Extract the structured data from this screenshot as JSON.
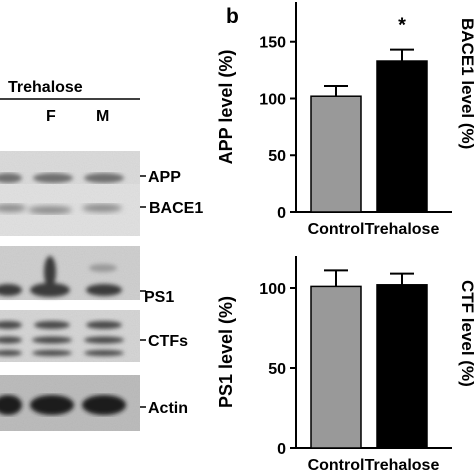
{
  "blot": {
    "group_label": "Trehalose",
    "lanes": [
      "F",
      "M"
    ],
    "bands": [
      "APP",
      "BACE1",
      "PS1",
      "CTFs",
      "Actin"
    ]
  },
  "panel_label": "b",
  "chart_data": [
    {
      "type": "bar",
      "categories": [
        "Control",
        "Trehalose"
      ],
      "values": [
        102,
        133
      ],
      "errors": [
        9,
        10
      ],
      "colors": [
        "#999999",
        "#000000"
      ],
      "ylabel": "APP level (%)",
      "ylim": [
        0,
        185
      ],
      "yticks": [
        0,
        50,
        100,
        150
      ],
      "significance": [
        "",
        "*"
      ],
      "right_label": "BACE1 level (%)"
    },
    {
      "type": "bar",
      "categories": [
        "Control",
        "Trehalose"
      ],
      "values": [
        101,
        102
      ],
      "errors": [
        10,
        7
      ],
      "colors": [
        "#999999",
        "#000000"
      ],
      "ylabel": "PS1 level (%)",
      "ylim": [
        0,
        120
      ],
      "yticks": [
        0,
        50,
        100
      ],
      "right_label": "CTF level (%)"
    }
  ]
}
